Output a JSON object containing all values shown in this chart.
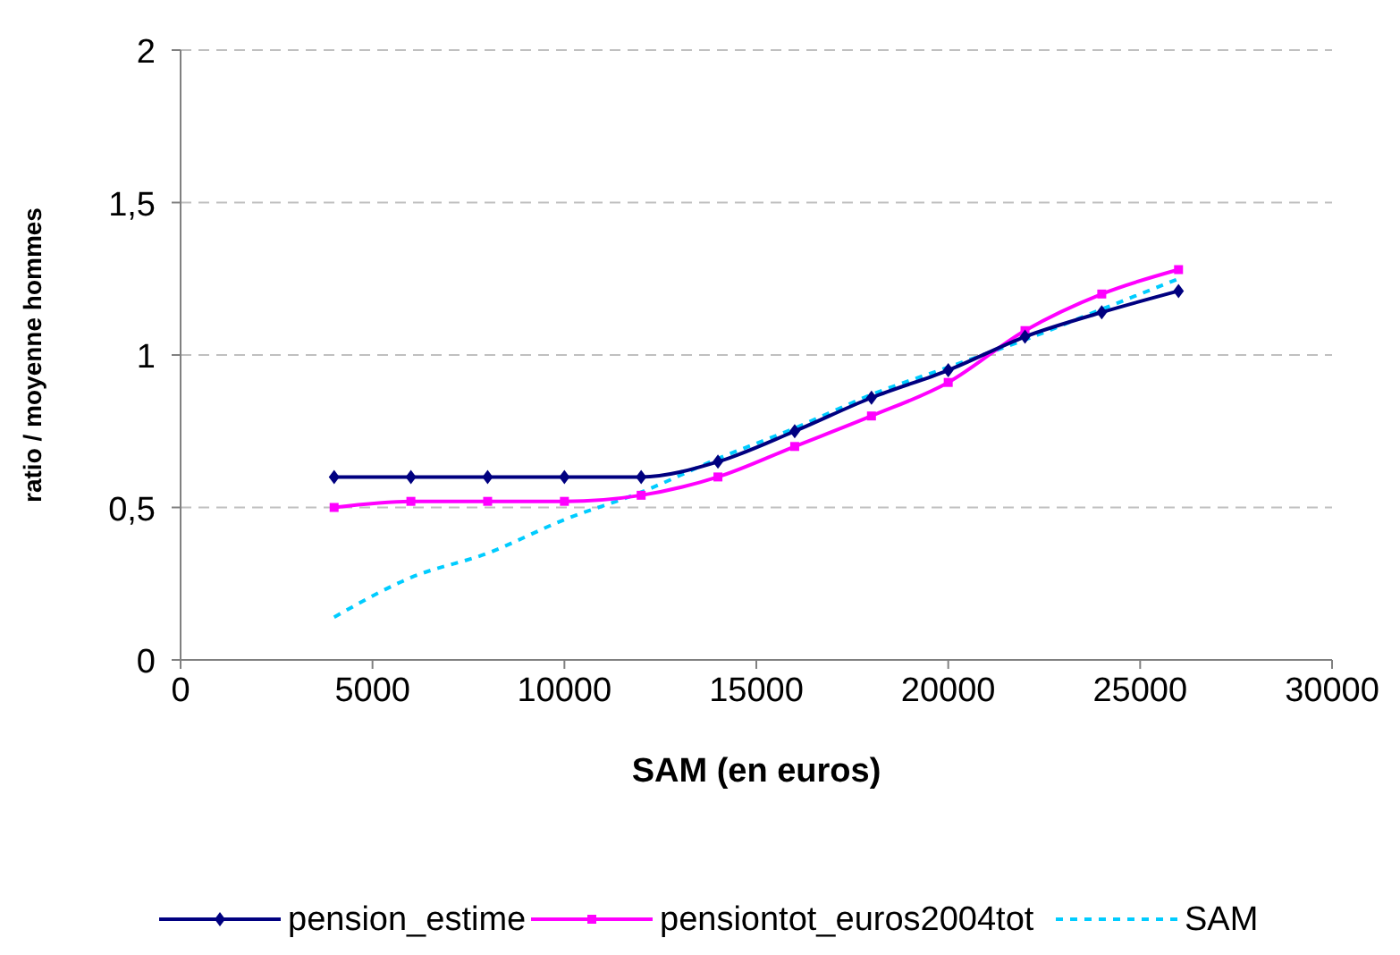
{
  "chart_data": {
    "type": "line",
    "xlabel": "SAM (en euros)",
    "ylabel": "ratio / moyenne hommes",
    "x": [
      4000,
      6000,
      8000,
      10000,
      12000,
      14000,
      16000,
      18000,
      20000,
      22000,
      24000,
      26000
    ],
    "series": [
      {
        "name": "pension_estime",
        "color": "#000080",
        "marker": "diamond",
        "line_style": "solid",
        "values": [
          0.6,
          0.6,
          0.6,
          0.6,
          0.6,
          0.65,
          0.75,
          0.86,
          0.95,
          1.06,
          1.14,
          1.21
        ]
      },
      {
        "name": "pensiontot_euros2004tot",
        "color": "#ff00ff",
        "marker": "square",
        "line_style": "solid",
        "values": [
          0.5,
          0.52,
          0.52,
          0.52,
          0.54,
          0.6,
          0.7,
          0.8,
          0.91,
          1.08,
          1.2,
          1.28
        ]
      },
      {
        "name": "SAM",
        "color": "#00ccff",
        "marker": "none",
        "line_style": "dashed",
        "values": [
          0.14,
          0.27,
          0.35,
          0.46,
          0.55,
          0.66,
          0.76,
          0.87,
          0.96,
          1.05,
          1.15,
          1.25
        ]
      }
    ],
    "xlim": [
      0,
      30000
    ],
    "xticks": [
      0,
      5000,
      10000,
      15000,
      20000,
      25000,
      30000
    ],
    "ylim": [
      0,
      2
    ],
    "yticks": [
      0,
      {
        "value": 0.5,
        "label": "0,5"
      },
      1,
      {
        "value": 1.5,
        "label": "1,5"
      },
      2
    ],
    "grid": "y",
    "legend": "bottom"
  }
}
